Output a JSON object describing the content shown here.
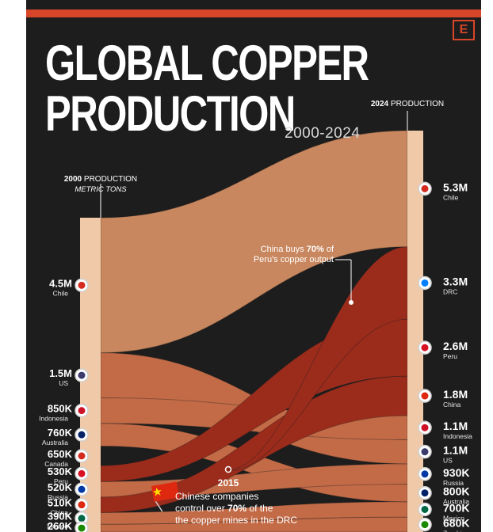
{
  "header": {
    "logo": "E",
    "title_line1": "GLOBAL COPPER",
    "title_line2": "PRODUCTION",
    "subtitle": "2000-2024"
  },
  "axis_labels": {
    "left_bold": "2000",
    "left_rest": " PRODUCTION",
    "left_sub": "METRIC TONS",
    "right_bold": "2024",
    "right_rest": " PRODUCTION"
  },
  "annotations": {
    "peru_part1": "China buys ",
    "peru_bold": "70%",
    "peru_part2": " of",
    "peru_line2": "Peru's copper output",
    "year_marker": "2015",
    "drc_line1": "Chinese companies",
    "drc_line2_part1": "control over ",
    "drc_line2_bold": "70%",
    "drc_line2_part2": " of the",
    "drc_line3": "the copper mines in the DRC"
  },
  "colors": {
    "background": "#1d1d1d",
    "accent": "#d8462a",
    "chile": "#c8875e",
    "china": "#9b2c1c",
    "other": "#c36b47"
  },
  "chart_data": {
    "type": "sankey-ranking",
    "years": [
      2000,
      2024
    ],
    "unit": "METRIC TONS",
    "start": [
      {
        "country": "Chile",
        "label": "4.5M",
        "value": 4500000
      },
      {
        "country": "US",
        "label": "1.5M",
        "value": 1500000
      },
      {
        "country": "Indonesia",
        "label": "850K",
        "value": 850000
      },
      {
        "country": "Australia",
        "label": "760K",
        "value": 760000
      },
      {
        "country": "Canada",
        "label": "650K",
        "value": 650000
      },
      {
        "country": "Peru",
        "label": "530K",
        "value": 530000
      },
      {
        "country": "Russia",
        "label": "520K",
        "value": 520000
      },
      {
        "country": "China",
        "label": "510K",
        "value": 510000
      },
      {
        "country": "Mexico",
        "label": "390K",
        "value": 390000
      },
      {
        "country": "Zambia",
        "label": "260K",
        "value": 260000
      }
    ],
    "end": [
      {
        "country": "Chile",
        "label": "5.3M",
        "value": 5300000
      },
      {
        "country": "DRC",
        "label": "3.3M",
        "value": 3300000
      },
      {
        "country": "Peru",
        "label": "2.6M",
        "value": 2600000
      },
      {
        "country": "China",
        "label": "1.8M",
        "value": 1800000
      },
      {
        "country": "Indonesia",
        "label": "1.1M",
        "value": 1100000
      },
      {
        "country": "US",
        "label": "1.1M",
        "value": 1100000
      },
      {
        "country": "Russia",
        "label": "930K",
        "value": 930000
      },
      {
        "country": "Australia",
        "label": "800K",
        "value": 800000
      },
      {
        "country": "Mexico",
        "label": "700K",
        "value": 700000
      },
      {
        "country": "Zambia",
        "label": "680K",
        "value": 680000
      }
    ]
  }
}
